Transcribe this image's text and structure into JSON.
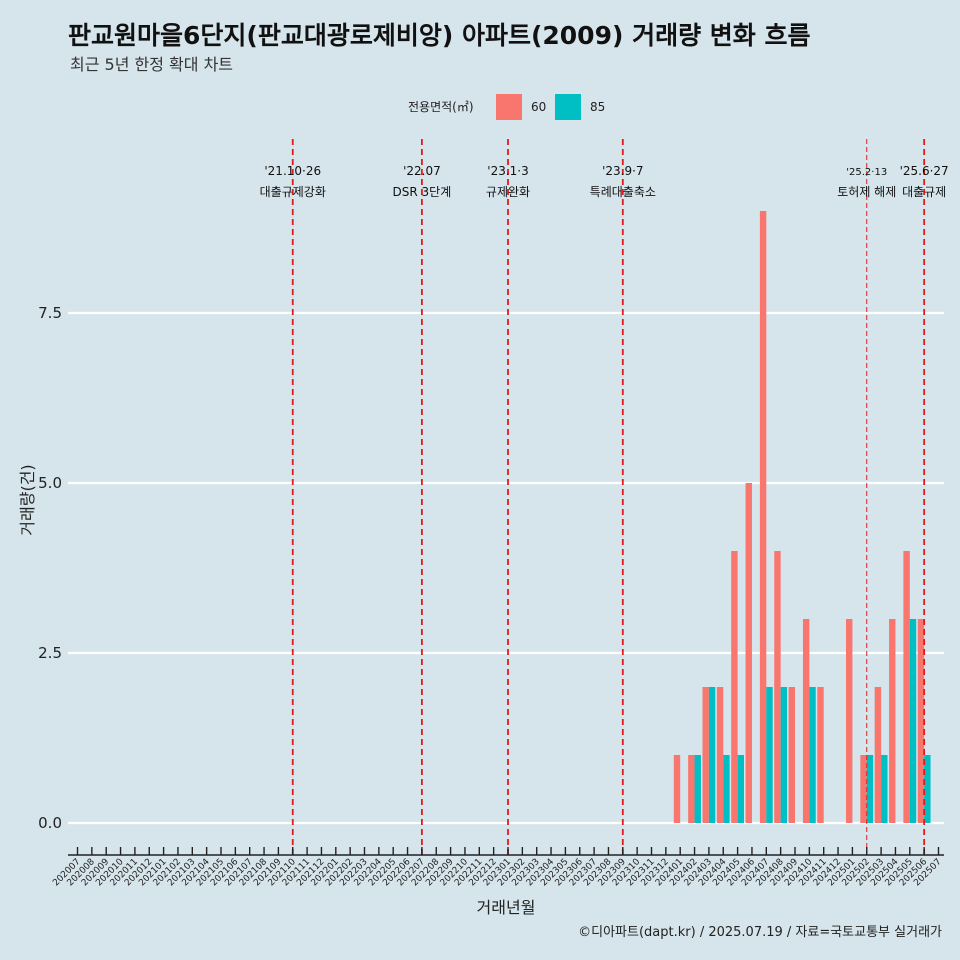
{
  "header": {
    "title": "판교원마을6단지(판교대광로제비앙) 아파트(2009) 거래량 변화 흐름",
    "subtitle": "최근 5년 한정 확대 차트"
  },
  "legend": {
    "title": "전용면적(㎡)",
    "items": [
      {
        "label": "60",
        "color": "#f8766d"
      },
      {
        "label": "85",
        "color": "#00bfc4"
      }
    ]
  },
  "caption": "©디아파트(dapt.kr) / 2025.07.19 / 자료=국토교통부 실거래가",
  "chart_data": {
    "type": "bar",
    "xlabel": "거래년월",
    "ylabel": "거래량(건)",
    "ylim": [
      -0.4,
      9.6
    ],
    "yticks": [
      0.0,
      2.5,
      5.0,
      7.5
    ],
    "ytick_labels": [
      "0.0",
      "2.5",
      "5.0",
      "7.5"
    ],
    "grid": true,
    "legend_position": "top",
    "categories": [
      "202007",
      "202008",
      "202009",
      "202010",
      "202011",
      "202012",
      "202101",
      "202102",
      "202103",
      "202104",
      "202105",
      "202106",
      "202107",
      "202108",
      "202109",
      "202110",
      "202111",
      "202112",
      "202201",
      "202202",
      "202203",
      "202204",
      "202205",
      "202206",
      "202207",
      "202208",
      "202209",
      "202210",
      "202211",
      "202212",
      "202301",
      "202302",
      "202303",
      "202304",
      "202305",
      "202306",
      "202307",
      "202308",
      "202309",
      "202310",
      "202311",
      "202312",
      "202401",
      "202402",
      "202403",
      "202404",
      "202405",
      "202406",
      "202407",
      "202408",
      "202409",
      "202410",
      "202411",
      "202412",
      "202501",
      "202502",
      "202503",
      "202504",
      "202505",
      "202506",
      "202507"
    ],
    "series": [
      {
        "name": "60",
        "color": "#f8766d",
        "points": [
          {
            "x": "202401",
            "y": 1
          },
          {
            "x": "202402",
            "y": 1
          },
          {
            "x": "202403",
            "y": 2
          },
          {
            "x": "202404",
            "y": 2
          },
          {
            "x": "202405",
            "y": 4
          },
          {
            "x": "202406",
            "y": 5
          },
          {
            "x": "202407",
            "y": 9
          },
          {
            "x": "202408",
            "y": 4
          },
          {
            "x": "202409",
            "y": 2
          },
          {
            "x": "202410",
            "y": 3
          },
          {
            "x": "202411",
            "y": 2
          },
          {
            "x": "202501",
            "y": 3
          },
          {
            "x": "202502",
            "y": 1
          },
          {
            "x": "202503",
            "y": 2
          },
          {
            "x": "202504",
            "y": 3
          },
          {
            "x": "202505",
            "y": 4
          },
          {
            "x": "202506",
            "y": 3
          }
        ]
      },
      {
        "name": "85",
        "color": "#00bfc4",
        "points": [
          {
            "x": "202402",
            "y": 1
          },
          {
            "x": "202403",
            "y": 2
          },
          {
            "x": "202404",
            "y": 1
          },
          {
            "x": "202405",
            "y": 1
          },
          {
            "x": "202407",
            "y": 2
          },
          {
            "x": "202408",
            "y": 2
          },
          {
            "x": "202410",
            "y": 2
          },
          {
            "x": "202502",
            "y": 1
          },
          {
            "x": "202503",
            "y": 1
          },
          {
            "x": "202505",
            "y": 3
          },
          {
            "x": "202506",
            "y": 1
          }
        ]
      }
    ],
    "annotations": [
      {
        "x": "202110",
        "date": "'21.10·26",
        "label": "대출규제강화",
        "line": "bold"
      },
      {
        "x": "202207",
        "date": "'22.07",
        "label": "DSR 3단계",
        "line": "bold"
      },
      {
        "x": "202301",
        "date": "'23.1·3",
        "label": "규제완화",
        "line": "bold"
      },
      {
        "x": "202309",
        "date": "'23.9·7",
        "label": "특례대출축소",
        "line": "bold"
      },
      {
        "x": "202502",
        "date": "'25.2·13",
        "label": "토허제 해제",
        "line": "thin"
      },
      {
        "x": "202506",
        "date": "'25.6·27",
        "label": "대출규제",
        "line": "bold"
      }
    ]
  }
}
